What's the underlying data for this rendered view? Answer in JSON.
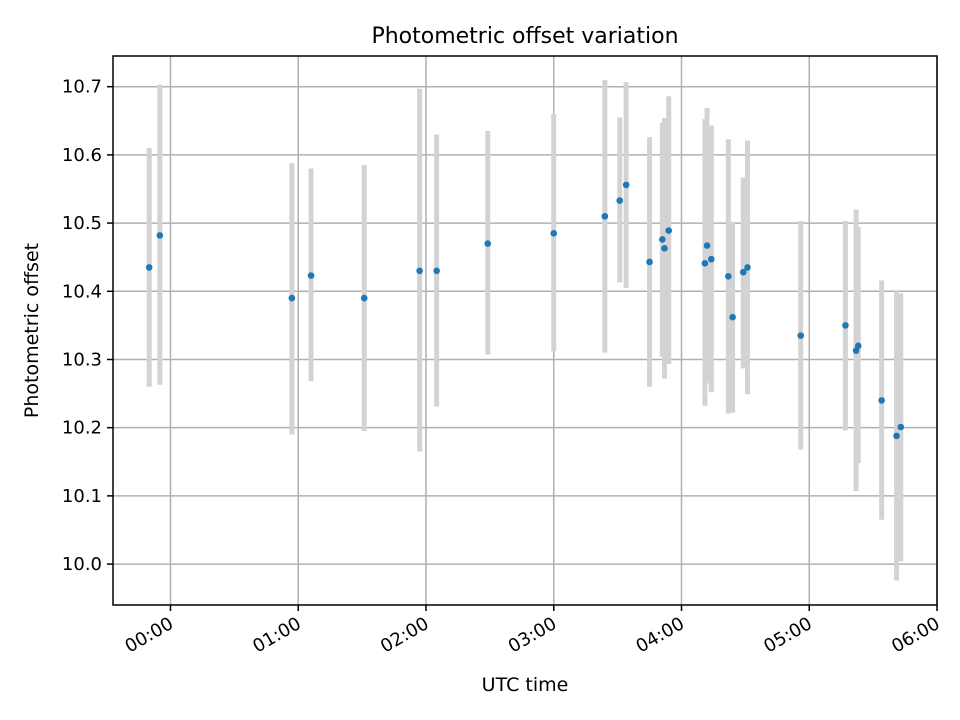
{
  "chart_data": {
    "type": "scatter",
    "title": "Photometric offset variation",
    "xlabel": "UTC time",
    "ylabel": "Photometric offset",
    "xlim": [
      "23:33",
      "06:00"
    ],
    "ylim": [
      9.94,
      10.745
    ],
    "grid": true,
    "x_ticks": [
      "00:00",
      "01:00",
      "02:00",
      "03:00",
      "04:00",
      "05:00",
      "06:00"
    ],
    "y_ticks": [
      10.0,
      10.1,
      10.2,
      10.3,
      10.4,
      10.5,
      10.6,
      10.7
    ],
    "y_tick_labels": [
      "10.0",
      "10.1",
      "10.2",
      "10.3",
      "10.4",
      "10.5",
      "10.6",
      "10.7"
    ],
    "series": [
      {
        "color": "#1f77b4",
        "error_color": "#d3d3d3",
        "points": [
          {
            "time": "23:50",
            "y": 10.435,
            "lo": 10.26,
            "hi": 10.61
          },
          {
            "time": "23:55",
            "y": 10.482,
            "lo": 10.263,
            "hi": 10.703
          },
          {
            "time": "00:57",
            "y": 10.39,
            "lo": 10.19,
            "hi": 10.588
          },
          {
            "time": "01:06",
            "y": 10.423,
            "lo": 10.268,
            "hi": 10.58
          },
          {
            "time": "01:31",
            "y": 10.39,
            "lo": 10.195,
            "hi": 10.585
          },
          {
            "time": "01:57",
            "y": 10.43,
            "lo": 10.165,
            "hi": 10.697
          },
          {
            "time": "02:05",
            "y": 10.43,
            "lo": 10.231,
            "hi": 10.63
          },
          {
            "time": "02:29",
            "y": 10.47,
            "lo": 10.307,
            "hi": 10.635
          },
          {
            "time": "03:00",
            "y": 10.485,
            "lo": 10.312,
            "hi": 10.66
          },
          {
            "time": "03:24",
            "y": 10.51,
            "lo": 10.31,
            "hi": 10.71
          },
          {
            "time": "03:31",
            "y": 10.533,
            "lo": 10.413,
            "hi": 10.655
          },
          {
            "time": "03:34",
            "y": 10.556,
            "lo": 10.405,
            "hi": 10.707
          },
          {
            "time": "03:45",
            "y": 10.443,
            "lo": 10.26,
            "hi": 10.626
          },
          {
            "time": "03:51",
            "y": 10.476,
            "lo": 10.304,
            "hi": 10.647
          },
          {
            "time": "03:52",
            "y": 10.463,
            "lo": 10.272,
            "hi": 10.654
          },
          {
            "time": "03:54",
            "y": 10.489,
            "lo": 10.293,
            "hi": 10.686
          },
          {
            "time": "04:11",
            "y": 10.441,
            "lo": 10.232,
            "hi": 10.653
          },
          {
            "time": "04:12",
            "y": 10.467,
            "lo": 10.265,
            "hi": 10.669
          },
          {
            "time": "04:14",
            "y": 10.447,
            "lo": 10.252,
            "hi": 10.643
          },
          {
            "time": "04:22",
            "y": 10.422,
            "lo": 10.221,
            "hi": 10.623
          },
          {
            "time": "04:24",
            "y": 10.362,
            "lo": 10.222,
            "hi": 10.502
          },
          {
            "time": "04:29",
            "y": 10.428,
            "lo": 10.287,
            "hi": 10.567
          },
          {
            "time": "04:31",
            "y": 10.435,
            "lo": 10.249,
            "hi": 10.621
          },
          {
            "time": "04:56",
            "y": 10.335,
            "lo": 10.168,
            "hi": 10.503
          },
          {
            "time": "05:17",
            "y": 10.35,
            "lo": 10.196,
            "hi": 10.503
          },
          {
            "time": "05:22",
            "y": 10.313,
            "lo": 10.107,
            "hi": 10.52
          },
          {
            "time": "05:23",
            "y": 10.32,
            "lo": 10.148,
            "hi": 10.494
          },
          {
            "time": "05:34",
            "y": 10.24,
            "lo": 10.065,
            "hi": 10.416
          },
          {
            "time": "05:41",
            "y": 10.188,
            "lo": 9.976,
            "hi": 10.4
          },
          {
            "time": "05:43",
            "y": 10.201,
            "lo": 10.004,
            "hi": 10.397
          }
        ]
      }
    ]
  }
}
